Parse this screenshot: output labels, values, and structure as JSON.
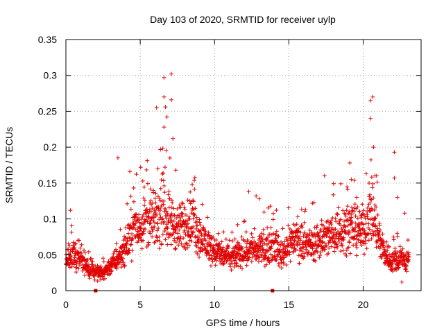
{
  "chart_data": {
    "type": "scatter",
    "title": "Day 103 of 2020, SRMTID for receiver uylp",
    "xlabel": "GPS time / hours",
    "ylabel": "SRMTID / TECUs",
    "xlim": [
      0,
      23.9
    ],
    "ylim": [
      0,
      0.35
    ],
    "x_ticks": [
      0,
      5,
      10,
      15,
      20
    ],
    "x_tick_labels": [
      "0",
      "5",
      "10",
      "15",
      "20"
    ],
    "y_ticks": [
      0,
      0.05,
      0.1,
      0.15,
      0.2,
      0.25,
      0.3,
      0.35
    ],
    "y_tick_labels": [
      "0",
      "0.05",
      "0.1",
      "0.15",
      "0.2",
      "0.25",
      "0.3",
      "0.35"
    ],
    "grid": true,
    "marker": "+",
    "color": "#e00000",
    "series": [
      {
        "name": "SRMTID",
        "profile_hours": [
          0,
          0.5,
          1,
          1.5,
          2,
          2.5,
          3,
          3.5,
          4,
          4.5,
          5,
          5.5,
          6,
          6.5,
          7,
          7.5,
          8,
          8.5,
          9,
          9.5,
          10,
          10.5,
          11,
          11.5,
          12,
          12.5,
          13,
          13.5,
          14,
          14.5,
          15,
          15.5,
          16,
          16.5,
          17,
          17.5,
          18,
          18.5,
          19,
          19.5,
          20,
          20.5,
          21,
          21.5,
          22,
          22.5,
          23
        ],
        "profile_mean_srmtid": [
          0.04,
          0.05,
          0.045,
          0.03,
          0.025,
          0.025,
          0.035,
          0.045,
          0.06,
          0.085,
          0.09,
          0.1,
          0.095,
          0.11,
          0.1,
          0.085,
          0.09,
          0.095,
          0.075,
          0.065,
          0.055,
          0.05,
          0.045,
          0.05,
          0.055,
          0.06,
          0.055,
          0.06,
          0.065,
          0.05,
          0.065,
          0.075,
          0.06,
          0.065,
          0.07,
          0.075,
          0.08,
          0.085,
          0.09,
          0.085,
          0.085,
          0.11,
          0.08,
          0.05,
          0.04,
          0.045,
          0.04
        ],
        "notable_points": [
          {
            "x": 0.3,
            "y": 0.112
          },
          {
            "x": 3.5,
            "y": 0.185
          },
          {
            "x": 4.3,
            "y": 0.166
          },
          {
            "x": 6.6,
            "y": 0.297
          },
          {
            "x": 7.1,
            "y": 0.302
          },
          {
            "x": 6.6,
            "y": 0.27
          },
          {
            "x": 7.1,
            "y": 0.266
          },
          {
            "x": 6.1,
            "y": 0.255
          },
          {
            "x": 6.7,
            "y": 0.256
          },
          {
            "x": 6.8,
            "y": 0.242
          },
          {
            "x": 6.6,
            "y": 0.228
          },
          {
            "x": 7.2,
            "y": 0.212
          },
          {
            "x": 7.4,
            "y": 0.168
          },
          {
            "x": 8.5,
            "y": 0.148
          },
          {
            "x": 12.3,
            "y": 0.138
          },
          {
            "x": 12.8,
            "y": 0.132
          },
          {
            "x": 13.0,
            "y": 0.128
          },
          {
            "x": 13.8,
            "y": 0.088
          },
          {
            "x": 17.4,
            "y": 0.16
          },
          {
            "x": 18.5,
            "y": 0.149
          },
          {
            "x": 19.1,
            "y": 0.178
          },
          {
            "x": 19.2,
            "y": 0.155
          },
          {
            "x": 20.5,
            "y": 0.265
          },
          {
            "x": 20.65,
            "y": 0.27
          },
          {
            "x": 20.5,
            "y": 0.24
          },
          {
            "x": 20.7,
            "y": 0.2
          },
          {
            "x": 20.8,
            "y": 0.16
          },
          {
            "x": 22.1,
            "y": 0.193
          },
          {
            "x": 22.1,
            "y": 0.157
          },
          {
            "x": 22.3,
            "y": 0.13
          },
          {
            "x": 22.8,
            "y": 0.108
          },
          {
            "x": 22.6,
            "y": 0.012
          }
        ],
        "marks_on_x_axis": [
          2.0,
          13.9
        ]
      }
    ]
  }
}
